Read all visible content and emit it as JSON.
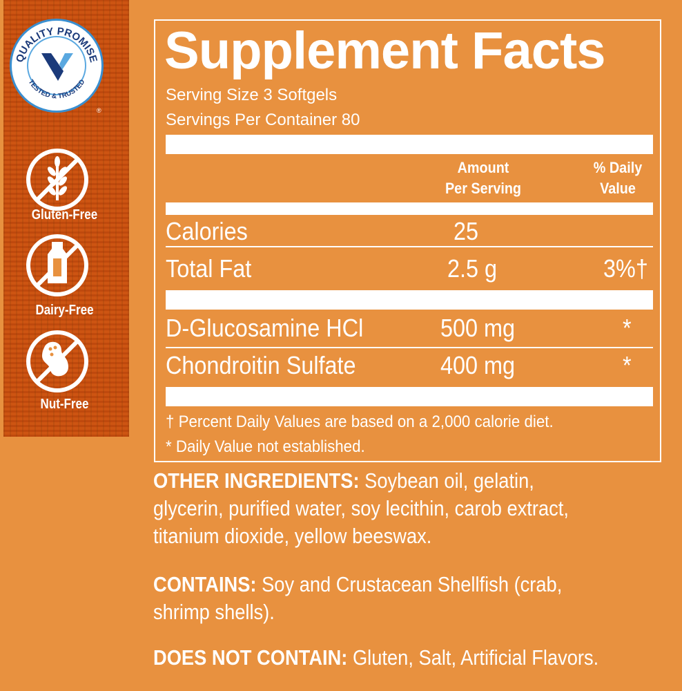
{
  "sidebar": {
    "badge": {
      "top_text": "QUALITY PROMISE",
      "bottom_text": "TESTED & TRUSTED",
      "mark": "®",
      "colors": {
        "navy": "#1b3a7a",
        "light_blue": "#5aa8e0"
      }
    },
    "claims": [
      {
        "label": "Gluten-Free",
        "icon": "no-wheat-icon"
      },
      {
        "label": "Dairy-Free",
        "icon": "no-milk-bottle-icon"
      },
      {
        "label": "Nut-Free",
        "icon": "no-peanut-icon"
      }
    ]
  },
  "facts": {
    "title": "Supplement Facts",
    "serving_size": "Serving Size 3 Softgels",
    "servings_per_container": "Servings Per Container 80",
    "col_amount": [
      "Amount",
      "Per Serving"
    ],
    "col_dv": [
      "% Daily",
      "Value"
    ],
    "rows": [
      {
        "name": "Calories",
        "amount": "25",
        "dv": ""
      },
      {
        "name": "Total Fat",
        "amount": "2.5 g",
        "dv": "3%†"
      },
      {
        "name": "D-Glucosamine HCl",
        "amount": "500 mg",
        "dv": "*"
      },
      {
        "name": "Chondroitin Sulfate",
        "amount": "400 mg",
        "dv": "*"
      }
    ],
    "footnote_1": "† Percent Daily Values are based on a 2,000 calorie diet.",
    "footnote_2": "* Daily Value not established."
  },
  "other_ingredients": {
    "label": "OTHER INGREDIENTS:",
    "lines": [
      " Soybean oil, gelatin,",
      "glycerin, purified water, soy lecithin, carob extract,",
      "titanium dioxide, yellow beeswax."
    ]
  },
  "contains": {
    "label": "CONTAINS:",
    "lines": [
      " Soy and Crustacean Shellfish (crab,",
      "shrimp shells)."
    ]
  },
  "does_not_contain": {
    "label": "DOES NOT CONTAIN:",
    "text": " Gluten, Salt, Artificial Flavors."
  },
  "colors": {
    "background": "#e8913f",
    "text": "#ffffff"
  }
}
